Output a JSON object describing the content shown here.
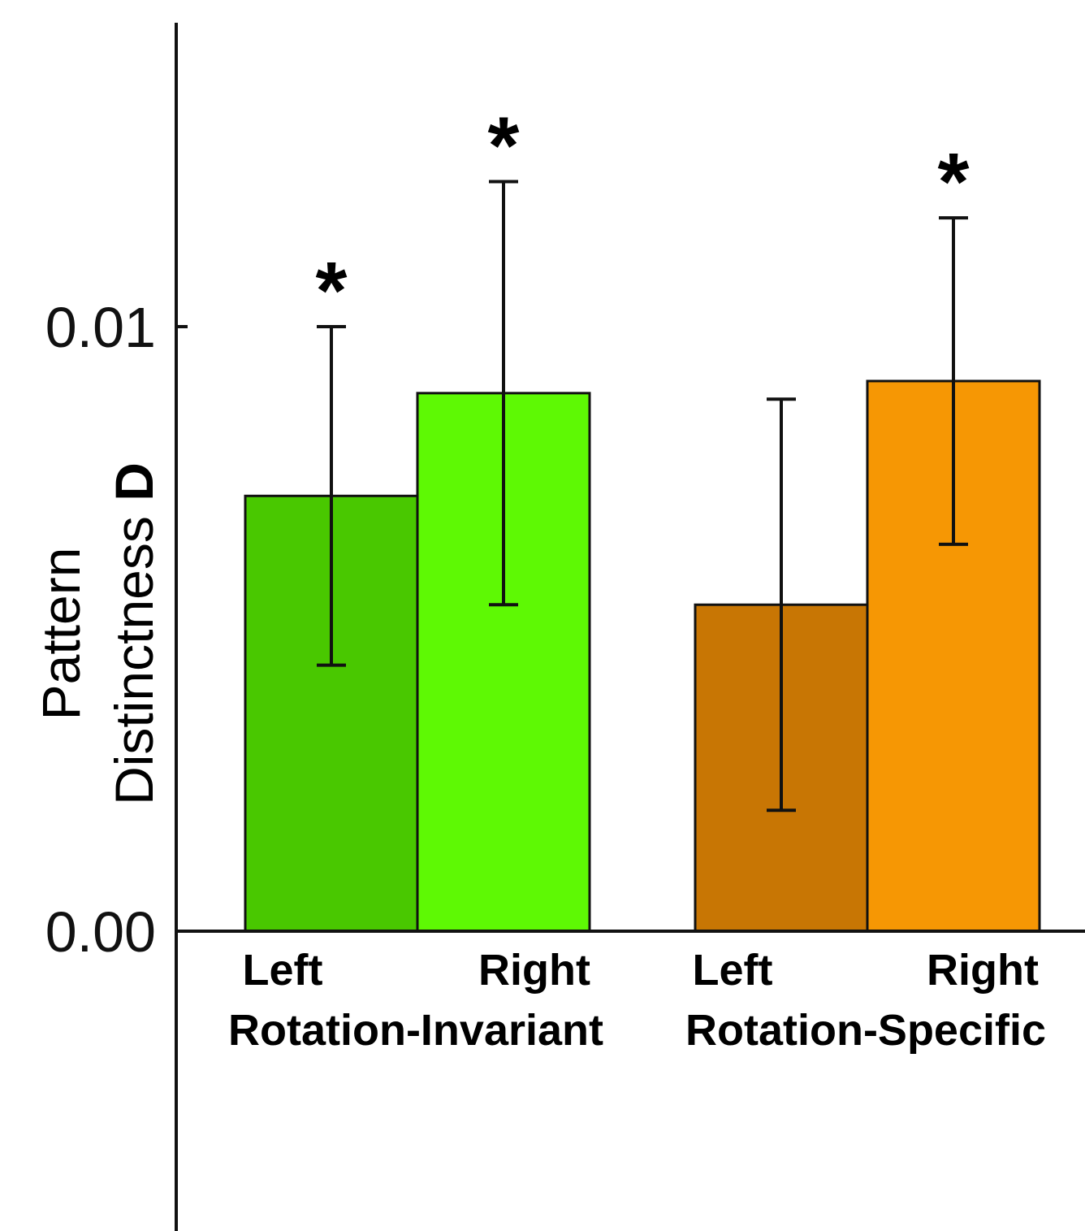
{
  "chart_data": {
    "type": "bar",
    "ylabel_line1": "Pattern",
    "ylabel_line2_prefix": "Distinctness ",
    "ylabel_line2_symbol": "D",
    "ylim": [
      0,
      0.01
    ],
    "yticks": [
      "0.00",
      "0.01"
    ],
    "ytick_values": [
      0,
      0.01
    ],
    "groups": [
      {
        "label": "Rotation-Invariant"
      },
      {
        "label": "Rotation-Specific"
      }
    ],
    "bars": [
      {
        "group": 0,
        "label": "Left",
        "value": 0.0072,
        "err_low": 0.0044,
        "err_high": 0.01,
        "significant": true,
        "color": "#49c800"
      },
      {
        "group": 0,
        "label": "Right",
        "value": 0.0089,
        "err_low": 0.0054,
        "err_high": 0.0124,
        "significant": true,
        "color": "#5ef904"
      },
      {
        "group": 1,
        "label": "Left",
        "value": 0.0054,
        "err_low": 0.002,
        "err_high": 0.0088,
        "significant": false,
        "color": "#c87604"
      },
      {
        "group": 1,
        "label": "Right",
        "value": 0.0091,
        "err_low": 0.0064,
        "err_high": 0.0118,
        "significant": true,
        "color": "#f69704"
      }
    ],
    "significance_marker": "*",
    "grid": false,
    "legend": "none"
  }
}
